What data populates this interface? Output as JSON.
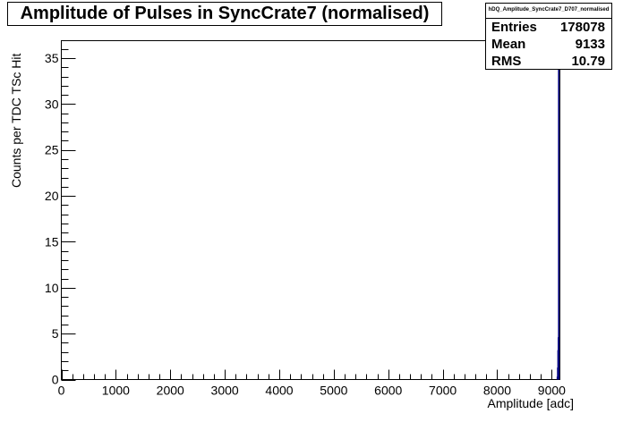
{
  "chart_data": {
    "type": "bar",
    "title": "Amplitude of Pulses in SyncCrate7 (normalised)",
    "xlabel": "Amplitude [adc]",
    "ylabel": "Counts per TDC TSc Hit",
    "xlim": [
      0,
      9150
    ],
    "ylim": [
      0,
      36.9
    ],
    "x_ticks": [
      "0",
      "1000",
      "2000",
      "3000",
      "4000",
      "5000",
      "6000",
      "7000",
      "8000",
      "9000"
    ],
    "y_ticks": [
      "0",
      "5",
      "10",
      "15",
      "20",
      "25",
      "30",
      "35"
    ],
    "bar_color": "#000080",
    "bins": [
      {
        "x": 9105,
        "y": 0.3
      },
      {
        "x": 9112,
        "y": 1.3
      },
      {
        "x": 9118,
        "y": 3.2
      },
      {
        "x": 9124,
        "y": 4.6
      },
      {
        "x": 9130,
        "y": 36.9
      }
    ],
    "grid": false,
    "legend": "none"
  },
  "stats": {
    "name": "hDQ_Amplitude_SyncCrate7_D707_normalised",
    "rows": [
      {
        "label": "Entries",
        "value": "178078"
      },
      {
        "label": "Mean",
        "value": "9133"
      },
      {
        "label": "RMS",
        "value": "10.79"
      }
    ]
  }
}
